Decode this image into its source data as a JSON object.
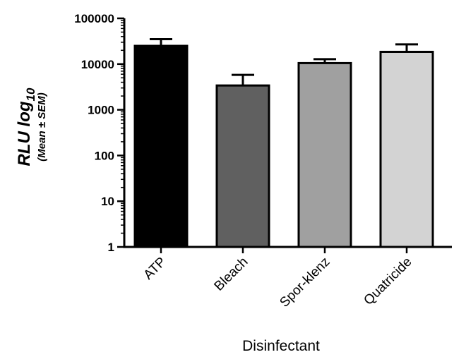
{
  "chart_data": {
    "type": "bar",
    "categories": [
      "ATP",
      "Bleach",
      "Spor-klenz",
      "Quatricide"
    ],
    "values": [
      25000,
      3400,
      10500,
      18500
    ],
    "error_upper": [
      35000,
      5800,
      12800,
      27000
    ],
    "colors": [
      "#000000",
      "#606060",
      "#a0a0a0",
      "#d3d3d3"
    ],
    "title": "",
    "xlabel": "Disinfectant",
    "ylabel": {
      "main": "RLU log",
      "subscript": "10",
      "sub": "(Mean ± SEM)"
    },
    "yscale": "log",
    "ylim": [
      1,
      100000
    ],
    "yticks": [
      "1",
      "10",
      "100",
      "1000",
      "10000",
      "100000"
    ],
    "grid": false
  }
}
